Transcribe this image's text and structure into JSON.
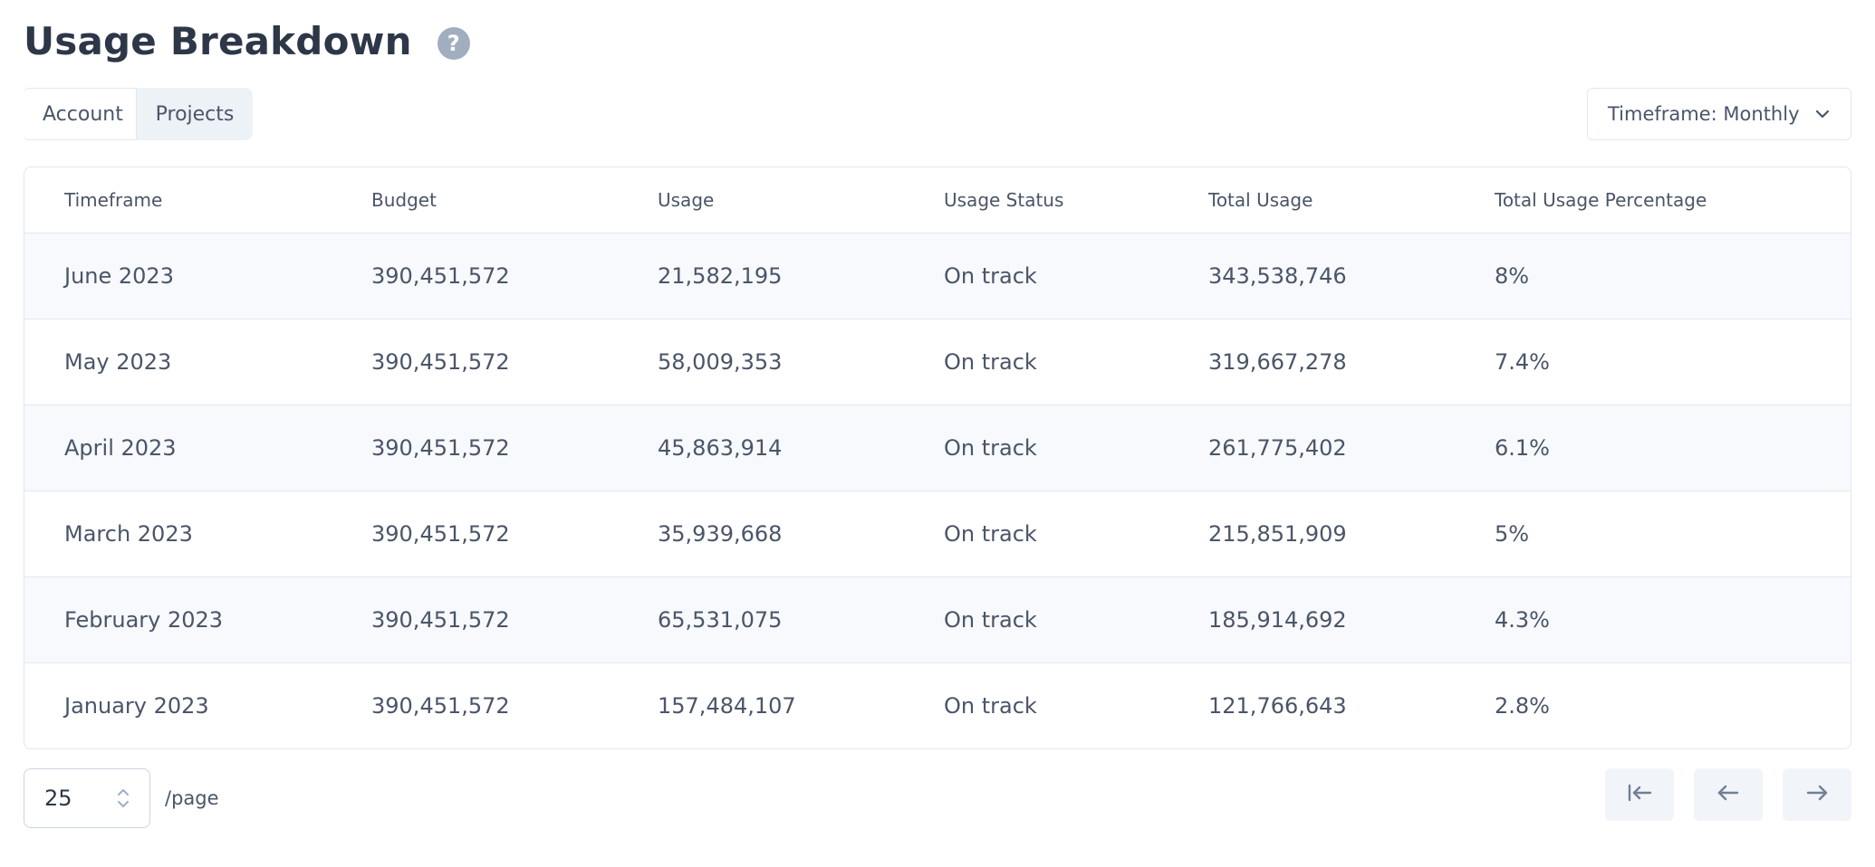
{
  "header": {
    "title": "Usage Breakdown",
    "help_icon_glyph": "?"
  },
  "tabs": [
    {
      "label": "Account",
      "selected": false
    },
    {
      "label": "Projects",
      "selected": true
    }
  ],
  "timeframe_select": {
    "label": "Timeframe: Monthly",
    "icon": "chevron-down-icon"
  },
  "table": {
    "columns": [
      "Timeframe",
      "Budget",
      "Usage",
      "Usage Status",
      "Total Usage",
      "Total Usage Percentage"
    ],
    "rows": [
      {
        "timeframe": "June 2023",
        "budget": "390,451,572",
        "usage": "21,582,195",
        "status": "On track",
        "total": "343,538,746",
        "pct": "8%"
      },
      {
        "timeframe": "May 2023",
        "budget": "390,451,572",
        "usage": "58,009,353",
        "status": "On track",
        "total": "319,667,278",
        "pct": "7.4%"
      },
      {
        "timeframe": "April 2023",
        "budget": "390,451,572",
        "usage": "45,863,914",
        "status": "On track",
        "total": "261,775,402",
        "pct": "6.1%"
      },
      {
        "timeframe": "March 2023",
        "budget": "390,451,572",
        "usage": "35,939,668",
        "status": "On track",
        "total": "215,851,909",
        "pct": "5%"
      },
      {
        "timeframe": "February 2023",
        "budget": "390,451,572",
        "usage": "65,531,075",
        "status": "On track",
        "total": "185,914,692",
        "pct": "4.3%"
      },
      {
        "timeframe": "January 2023",
        "budget": "390,451,572",
        "usage": "157,484,107",
        "status": "On track",
        "total": "121,766,643",
        "pct": "2.8%"
      }
    ]
  },
  "pagination": {
    "page_size": "25",
    "per_page_label": "/page",
    "icons": [
      "first-page-icon",
      "previous-page-icon",
      "next-page-icon"
    ]
  },
  "colors": {
    "title": "#2d3748",
    "text": "#4a5568",
    "border": "#e2e8f0",
    "row_stripe": "#f7f9fc",
    "tab_selected_bg": "#edf2f7",
    "help_icon_bg": "#a0aec0",
    "pager_bg": "#f1f4f9"
  }
}
